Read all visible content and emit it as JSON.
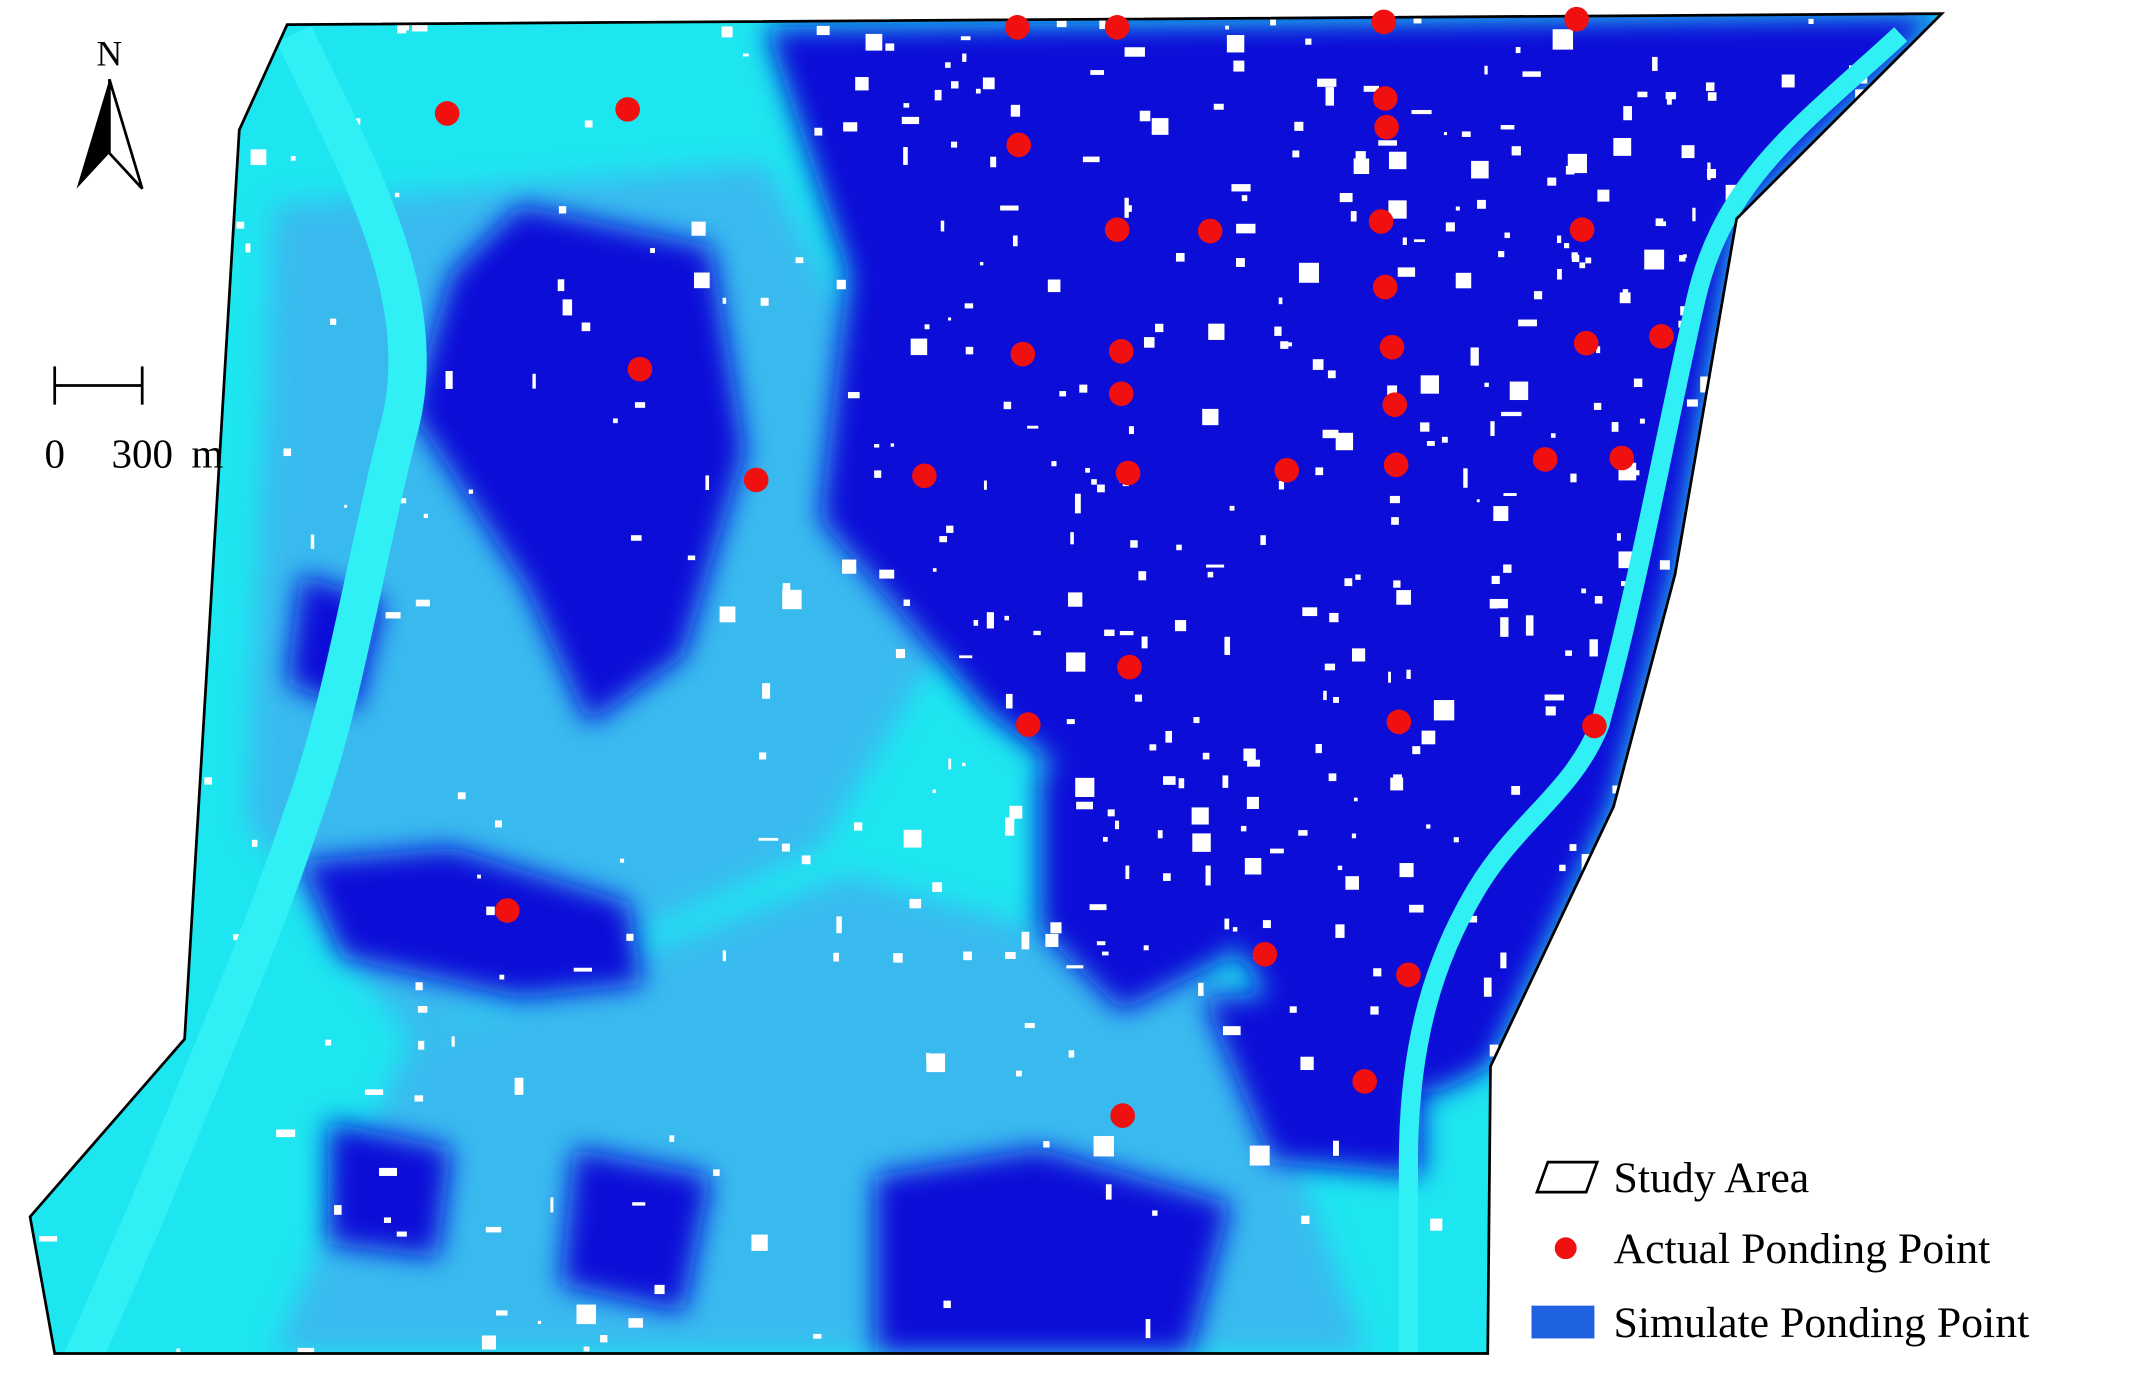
{
  "north_label": "N",
  "scale_bar": {
    "start": "0",
    "distance": "300",
    "unit": "m"
  },
  "legend": [
    {
      "label": "Study Area"
    },
    {
      "label": "Actual Ponding Point"
    },
    {
      "label": "Simulate Ponding Point"
    }
  ]
}
